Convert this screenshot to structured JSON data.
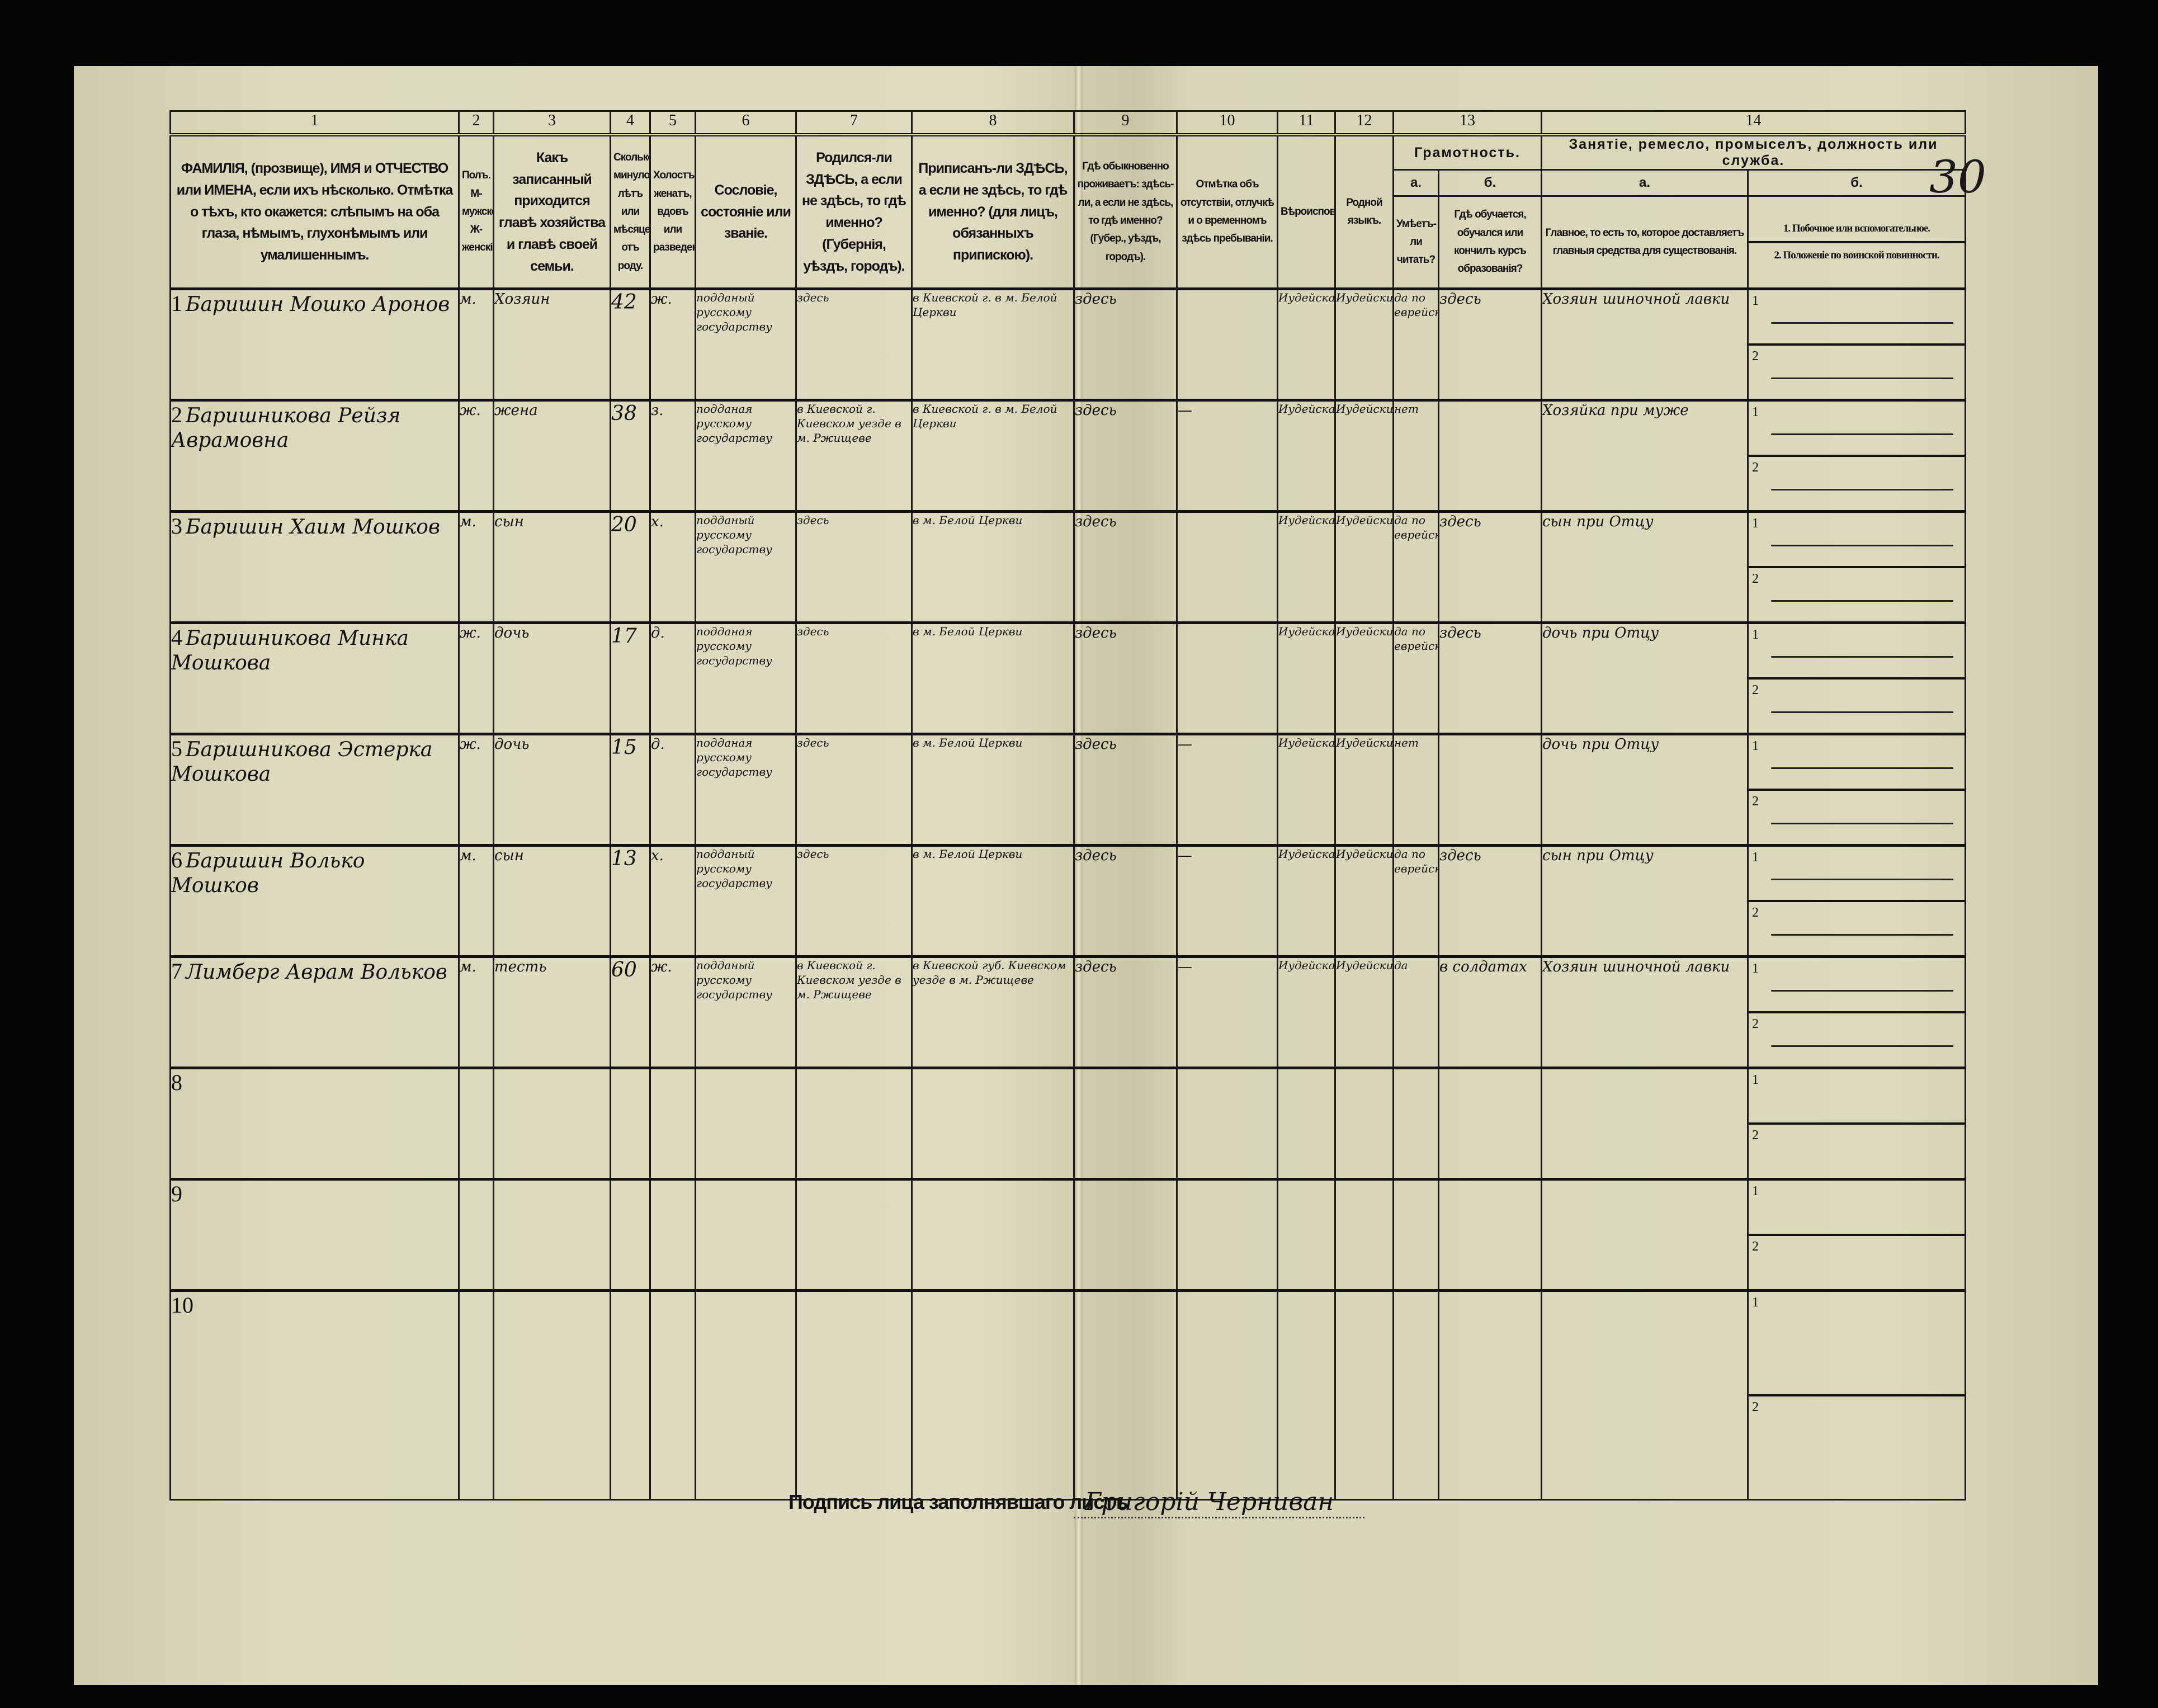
{
  "page_number": "30",
  "column_numbers": [
    "1",
    "2",
    "3",
    "4",
    "5",
    "6",
    "7",
    "8",
    "9",
    "10",
    "11",
    "12",
    "13",
    "14"
  ],
  "headers": {
    "c1": "ФАМИЛІЯ, (прозвище), ИМЯ и ОТЧЕСТВО или ИМЕНА, если ихъ нѣсколько. Отмѣтка о тѣхъ, кто окажется: слѣпымъ на оба глаза, нѣмымъ, глухонѣмымъ или умалишеннымъ.",
    "c2": "Полъ. М-мужской. Ж-женскій.",
    "c3": "Какъ записанный приходится главѣ хозяйства и главѣ своей семьи.",
    "c4": "Сколько минуло лѣтъ или мѣсяцевъ отъ роду.",
    "c5": "Холостъ, женатъ, вдовъ или разведенъ.",
    "c6": "Сословіе, состояніе или званіе.",
    "c7": "Родился-ли ЗДѢСЬ, а если не здѣсь, то гдѣ именно? (Губернія, уѣздъ, городъ).",
    "c8": "Приписанъ-ли ЗДѢСЬ, а если не здѣсь, то гдѣ именно? (для лицъ, обязанныхъ припискою).",
    "c9": "Гдѣ обыкновенно проживаетъ: здѣсь-ли, а если не здѣсь, то гдѣ именно? (Губер., уѣздъ, городъ).",
    "c10": "Отмѣтка объ отсутствіи, отлучкѣ и о временномъ здѣсь пребываніи.",
    "c11": "Вѣроисповѣданіе.",
    "c12": "Родной языкъ.",
    "c13": "Грамотность.",
    "c13a_letter": "а.",
    "c13a": "Умѣетъ-ли читать?",
    "c13b_letter": "б.",
    "c13b": "Гдѣ обучается, обучался или кончилъ курсъ образованія?",
    "c14": "Занятіе, ремесло, промыселъ, должность или служба.",
    "c14a_letter": "а.",
    "c14a": "Главное, то есть то, которое доставляетъ главныя средства для существованія.",
    "c14b_letter": "б.",
    "c14b_1": "1. Побочное или вспомогательное.",
    "c14b_2": "2. Положеніе по воинской повинности."
  },
  "sub_labels": [
    "1",
    "2"
  ],
  "rows": [
    {
      "n": "1",
      "name": "Баришин Мошко Аронов",
      "sex": "м.",
      "relation": "Хозяин",
      "age": "42",
      "marital": "ж.",
      "estate": "подданый русскому государству",
      "born": "здесь",
      "registered": "в Киевской г. в м. Белой Церкви",
      "residence": "здесь",
      "absence": "",
      "religion": "Иудейская",
      "language": "Иудейский",
      "literate": "да по еврейски",
      "education": "здесь",
      "occupation": "Хозяин шиночной лавки",
      "side1": "—",
      "side2": "—"
    },
    {
      "n": "2",
      "name": "Баришникова Рейзя Аврамовна",
      "sex": "ж.",
      "relation": "жена",
      "age": "38",
      "marital": "з.",
      "estate": "подданая русскому государству",
      "born": "в Киевской г. Киевском уезде в м. Ржищеве",
      "registered": "в Киевской г. в м. Белой Церкви",
      "residence": "здесь",
      "absence": "—",
      "religion": "Иудейская",
      "language": "Иудейский",
      "literate": "нет",
      "education": "",
      "occupation": "Хозяйка при муже",
      "side1": "—",
      "side2": "—"
    },
    {
      "n": "3",
      "name": "Баришин Хаим Мошков",
      "sex": "м.",
      "relation": "сын",
      "age": "20",
      "marital": "х.",
      "estate": "подданый русскому государству",
      "born": "здесь",
      "registered": "в м. Белой Церкви",
      "residence": "здесь",
      "absence": "",
      "religion": "Иудейская",
      "language": "Иудейский",
      "literate": "да по еврейски",
      "education": "здесь",
      "occupation": "сын при Отцу",
      "side1": "—",
      "side2": "—"
    },
    {
      "n": "4",
      "name": "Баришникова Минка Мошкова",
      "sex": "ж.",
      "relation": "дочь",
      "age": "17",
      "marital": "д.",
      "estate": "подданая русскому государству",
      "born": "здесь",
      "registered": "в м. Белой Церкви",
      "residence": "здесь",
      "absence": "",
      "religion": "Иудейская",
      "language": "Иудейский",
      "literate": "да по еврейски",
      "education": "здесь",
      "occupation": "дочь при Отцу",
      "side1": "—",
      "side2": "—"
    },
    {
      "n": "5",
      "name": "Баришникова Эстерка Мошкова",
      "sex": "ж.",
      "relation": "дочь",
      "age": "15",
      "marital": "д.",
      "estate": "подданая русскому государству",
      "born": "здесь",
      "registered": "в м. Белой Церкви",
      "residence": "здесь",
      "absence": "—",
      "religion": "Иудейская",
      "language": "Иудейский",
      "literate": "нет",
      "education": "",
      "occupation": "дочь при Отцу",
      "side1": "—",
      "side2": "—"
    },
    {
      "n": "6",
      "name": "Баришин Волько Мошков",
      "sex": "м.",
      "relation": "сын",
      "age": "13",
      "marital": "х.",
      "estate": "подданый русскому государству",
      "born": "здесь",
      "registered": "в м. Белой Церкви",
      "residence": "здесь",
      "absence": "—",
      "religion": "Иудейская",
      "language": "Иудейский",
      "literate": "да по еврейски",
      "education": "здесь",
      "occupation": "сын при Отцу",
      "side1": "—",
      "side2": "—"
    },
    {
      "n": "7",
      "name": "Лимберг Аврам Вольков",
      "sex": "м.",
      "relation": "тесть",
      "age": "60",
      "marital": "ж.",
      "estate": "подданый русскому государству",
      "born": "в Киевской г. Киевском уезде в м. Ржищеве",
      "registered": "в Киевской губ. Киевском уезде в м. Ржищеве",
      "residence": "здесь",
      "absence": "—",
      "religion": "Иудейская",
      "language": "Иудейский",
      "literate": "да",
      "education": "в солдатах",
      "occupation": "Хозяин шиночной лавки",
      "side1": "—",
      "side2": "—"
    },
    {
      "n": "8"
    },
    {
      "n": "9"
    },
    {
      "n": "10"
    }
  ],
  "footer": {
    "signature_label": "Подпись лица заполнявшаго листъ",
    "signature": "Григорій Черниван"
  }
}
